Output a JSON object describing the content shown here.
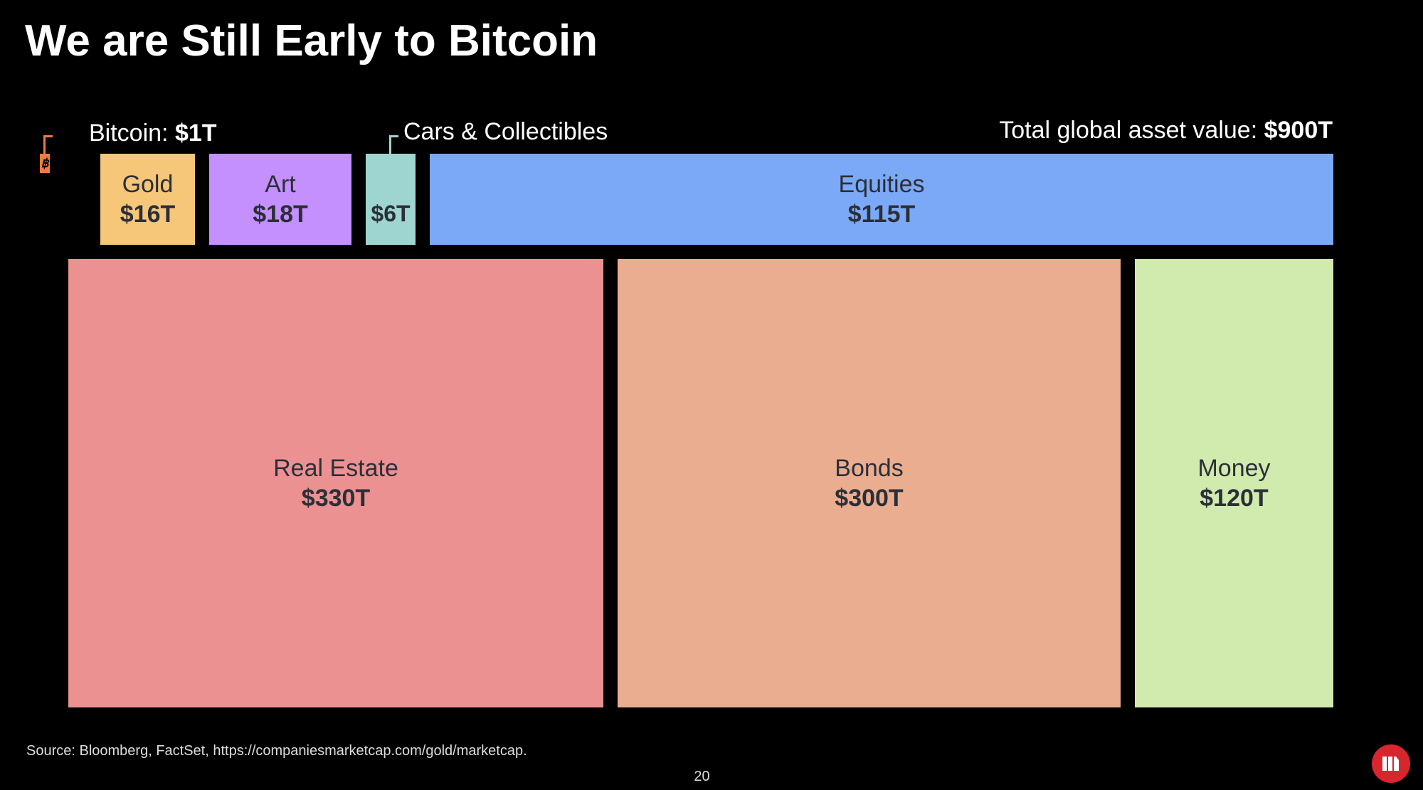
{
  "title": "We are Still Early to Bitcoin",
  "annotations": {
    "bitcoin_label": "Bitcoin: ",
    "bitcoin_value": "$1T",
    "cars_label": "Cars & Collectibles",
    "total_label": "Total global asset value: ",
    "total_value": "$900T"
  },
  "chart_data": {
    "type": "treemap",
    "unit": "trillion USD",
    "total": 900,
    "items": [
      {
        "name": "Bitcoin",
        "value": 1,
        "label": "$1T",
        "color": "#ee7d3b"
      },
      {
        "name": "Gold",
        "value": 16,
        "label": "$16T",
        "color": "#f6c679"
      },
      {
        "name": "Art",
        "value": 18,
        "label": "$18T",
        "color": "#c390fd"
      },
      {
        "name": "Cars & Collectibles",
        "value": 6,
        "label": "$6T",
        "color": "#9ed5d1"
      },
      {
        "name": "Equities",
        "value": 115,
        "label": "$115T",
        "color": "#7ba9f7"
      },
      {
        "name": "Real Estate",
        "value": 330,
        "label": "$330T",
        "color": "#ec9191"
      },
      {
        "name": "Bonds",
        "value": 300,
        "label": "$300T",
        "color": "#eaad90"
      },
      {
        "name": "Money",
        "value": 120,
        "label": "$120T",
        "color": "#d1eaae"
      }
    ]
  },
  "source": "Source: Bloomberg, FactSet, https://companiesmarketcap.com/gold/marketcap.",
  "page_number": "20",
  "bitcoin_icon": "bitcoin-symbol-icon",
  "logo": "red-circle-bars-logo"
}
